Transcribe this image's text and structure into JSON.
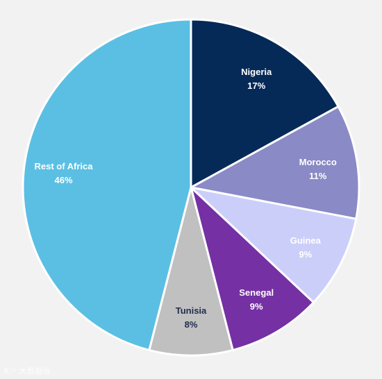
{
  "chart_data": {
    "type": "pie",
    "title": "",
    "slices": [
      {
        "label": "Nigeria",
        "value": 17,
        "value_label": "17%",
        "color": "#062a57",
        "text_color": "#ffffff"
      },
      {
        "label": "Morocco",
        "value": 11,
        "value_label": "11%",
        "color": "#8a8ac6",
        "text_color": "#ffffff"
      },
      {
        "label": "Guinea",
        "value": 9,
        "value_label": "9%",
        "color": "#cccefa",
        "text_color": "#ffffff"
      },
      {
        "label": "Senegal",
        "value": 9,
        "value_label": "9%",
        "color": "#7530a3",
        "text_color": "#ffffff"
      },
      {
        "label": "Tunisia",
        "value": 8,
        "value_label": "8%",
        "color": "#c0c0c0",
        "text_color": "#1f2d4a"
      },
      {
        "label": "Rest of Africa",
        "value": 46,
        "value_label": "46%",
        "color": "#5bbfe3",
        "text_color": "#ffffff"
      }
    ],
    "start_angle": "12 o'clock",
    "direction": "clockwise",
    "legend": "none",
    "data_labels": "inside"
  },
  "watermark": {
    "text": "K²⁵ 大数据谷"
  }
}
